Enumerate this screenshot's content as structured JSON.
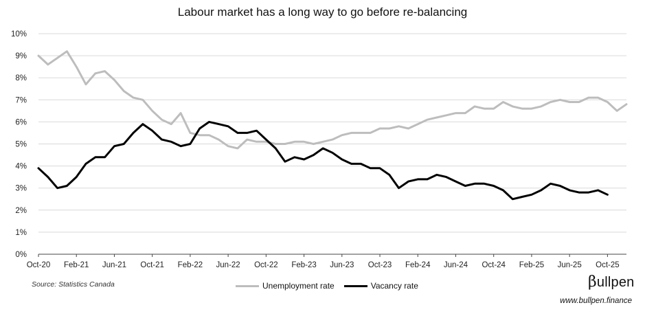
{
  "chart_data": {
    "type": "line",
    "title": "Labour market has a long way to go before re-balancing",
    "xlabel": "",
    "ylabel": "",
    "ylim": [
      0,
      10
    ],
    "y_ticks": [
      "0%",
      "1%",
      "2%",
      "3%",
      "4%",
      "5%",
      "6%",
      "7%",
      "8%",
      "9%",
      "10%"
    ],
    "x_ticks": [
      "Oct-20",
      "Feb-21",
      "Jun-21",
      "Oct-21",
      "Feb-22",
      "Jun-22",
      "Oct-22",
      "Feb-23",
      "Jun-23",
      "Oct-23",
      "Feb-24",
      "Jun-24",
      "Oct-24",
      "Feb-25",
      "Jun-25",
      "Oct-25"
    ],
    "x_tick_month_index": [
      0,
      4,
      8,
      12,
      16,
      20,
      24,
      28,
      32,
      36,
      40,
      44,
      48,
      52,
      56,
      60
    ],
    "x_start": "Oct-20",
    "x_end": "Dec-25",
    "series": [
      {
        "name": "Unemployment rate",
        "color": "#bdbdbd",
        "values": [
          9.0,
          8.6,
          8.9,
          9.2,
          8.5,
          7.7,
          8.2,
          8.3,
          7.9,
          7.4,
          7.1,
          7.0,
          6.5,
          6.1,
          5.9,
          6.4,
          5.5,
          5.4,
          5.4,
          5.2,
          4.9,
          4.8,
          5.2,
          5.1,
          5.1,
          5.0,
          5.0,
          5.1,
          5.1,
          5.0,
          5.1,
          5.2,
          5.4,
          5.5,
          5.5,
          5.5,
          5.7,
          5.7,
          5.8,
          5.7,
          5.9,
          6.1,
          6.2,
          6.3,
          6.4,
          6.4,
          6.7,
          6.6,
          6.6,
          6.9,
          6.7,
          6.6,
          6.6,
          6.7,
          6.9,
          7.0,
          6.9,
          6.9,
          7.1,
          7.1,
          6.9,
          6.5,
          6.8
        ]
      },
      {
        "name": "Vacancy rate",
        "color": "#000000",
        "values": [
          3.9,
          3.5,
          3.0,
          3.1,
          3.5,
          4.1,
          4.4,
          4.4,
          4.9,
          5.0,
          5.5,
          5.9,
          5.6,
          5.2,
          5.1,
          4.9,
          5.0,
          5.7,
          6.0,
          5.9,
          5.8,
          5.5,
          5.5,
          5.6,
          5.2,
          4.8,
          4.2,
          4.4,
          4.3,
          4.5,
          4.8,
          4.6,
          4.3,
          4.1,
          4.1,
          3.9,
          3.9,
          3.6,
          3.0,
          3.3,
          3.4,
          3.4,
          3.6,
          3.5,
          3.3,
          3.1,
          3.2,
          3.2,
          3.1,
          2.9,
          2.5,
          2.6,
          2.7,
          2.9,
          3.2,
          3.1,
          2.9,
          2.8,
          2.8,
          2.9,
          2.7
        ]
      }
    ]
  },
  "footer": {
    "source": "Source: Statistics Canada",
    "legend": [
      "Unemployment rate",
      "Vacancy rate"
    ],
    "brand_initial": "β",
    "brand_rest": "ullpen",
    "url": "www.bullpen.finance"
  }
}
